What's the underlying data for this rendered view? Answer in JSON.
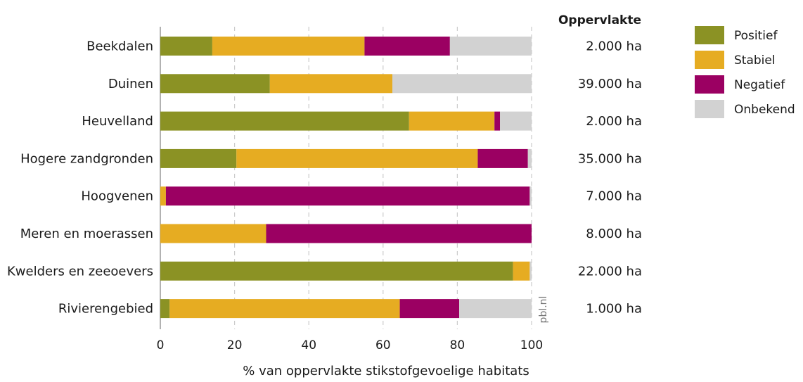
{
  "chart_data": {
    "type": "bar",
    "orientation": "horizontal",
    "stacked": true,
    "title": "",
    "xlabel": "% van oppervlakte stikstofgevoelige habitats",
    "ylabel": "",
    "xlim": [
      0,
      100
    ],
    "xticks": [
      "0",
      "20",
      "40",
      "60",
      "80",
      "100"
    ],
    "grid": true,
    "legend_position": "right",
    "categories": [
      "Beekdalen",
      "Duinen",
      "Heuvelland",
      "Hogere zandgronden",
      "Hoogvenen",
      "Meren en moerassen",
      "Kwelders en zeeoevers",
      "Rivierengebied"
    ],
    "series": [
      {
        "name": "Positief",
        "color": "#8b9224",
        "values": [
          14,
          29.5,
          67,
          20.5,
          0,
          0,
          95,
          2.5
        ]
      },
      {
        "name": "Stabiel",
        "color": "#e6ac22",
        "values": [
          41,
          33,
          23,
          65,
          1.5,
          28.5,
          4.5,
          62
        ]
      },
      {
        "name": "Negatief",
        "color": "#9b0062",
        "values": [
          23,
          0,
          1.5,
          13.5,
          98,
          71.5,
          0,
          16
        ]
      },
      {
        "name": "Onbekend",
        "color": "#d2d2d2",
        "values": [
          22,
          37.5,
          8.5,
          1,
          0.5,
          0,
          0.5,
          19.5
        ]
      }
    ],
    "column_header": "Oppervlakte",
    "areas": [
      "2.000 ha",
      "39.000 ha",
      "2.000 ha",
      "35.000 ha",
      "7.000 ha",
      "8.000 ha",
      "22.000 ha",
      "1.000 ha"
    ],
    "source": "pbl.nl"
  }
}
